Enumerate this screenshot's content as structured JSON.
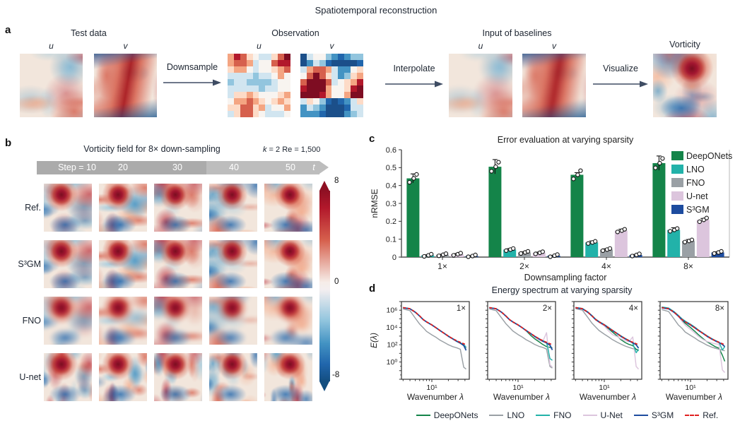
{
  "figure": {
    "title": "Spatiotemporal reconstruction"
  },
  "panel_a": {
    "label": "a",
    "groups": [
      {
        "title": "Test data",
        "maps": [
          {
            "label": "u"
          },
          {
            "label": "v"
          }
        ]
      },
      {
        "title": "Observation",
        "maps": [
          {
            "label": "u"
          },
          {
            "label": "v"
          }
        ]
      },
      {
        "title": "Input of baselines",
        "maps": [
          {
            "label": "u"
          },
          {
            "label": "v"
          }
        ]
      },
      {
        "title": "Vorticity"
      }
    ],
    "arrows": [
      {
        "label": "Downsample"
      },
      {
        "label": "Interpolate"
      },
      {
        "label": "Visualize"
      }
    ]
  },
  "panel_b": {
    "label": "b",
    "title": "Vorticity field for 8× down-sampling",
    "subtitle_k": "k",
    "subtitle_rest": " = 2 Re = 1,500",
    "timeline": {
      "labels": [
        "Step = 10",
        "20",
        "30",
        "40",
        "50"
      ],
      "axis": "t"
    },
    "rows": [
      "Ref.",
      "S³GM",
      "FNO",
      "U-net"
    ],
    "colorbar": {
      "max": "8",
      "mid": "0",
      "min": "-8"
    }
  },
  "panel_c": {
    "label": "c"
  },
  "panel_d": {
    "label": "d",
    "title": "Energy spectrum at varying sparsity",
    "legend": [
      {
        "label": "DeepONets",
        "color": "#148449",
        "dash": false
      },
      {
        "label": "LNO",
        "color": "#9aa0a5",
        "dash": false
      },
      {
        "label": "FNO",
        "color": "#22b2a9",
        "dash": false
      },
      {
        "label": "U-Net",
        "color": "#dcc5dd",
        "dash": false
      },
      {
        "label": "S³GM",
        "color": "#1d4c9f",
        "dash": false
      },
      {
        "label": "Ref.",
        "color": "#e01f1f",
        "dash": true
      }
    ]
  },
  "chart_data": [
    {
      "type": "bar",
      "title": "Error evaluation at varying sparsity",
      "xlabel": "Downsampling factor",
      "ylabel": "nRMSE",
      "ylim": [
        0,
        0.6
      ],
      "ytick_values": [
        0,
        0.1,
        0.2,
        0.3,
        0.4,
        0.5,
        0.6
      ],
      "ytick_labels": [
        "0",
        "0.1",
        "0.2",
        "0.3",
        "0.4",
        "0.5",
        "0.6"
      ],
      "categories": [
        "1×",
        "2×",
        "4×",
        "8×"
      ],
      "legend_position": "top-right",
      "grid": false,
      "series": [
        {
          "name": "DeepONets",
          "color": "#148449",
          "values": [
            0.44,
            0.505,
            0.46,
            0.525
          ],
          "errors": [
            0.025,
            0.04,
            0.012,
            0.04
          ]
        },
        {
          "name": "LNO",
          "color": "#22b2a9",
          "values": [
            0.01,
            0.042,
            0.082,
            0.152
          ],
          "errors": [
            0.003,
            0.006,
            0.008,
            0.012
          ]
        },
        {
          "name": "FNO",
          "color": "#9aa0a5",
          "values": [
            0.013,
            0.026,
            0.042,
            0.09
          ],
          "errors": [
            0.003,
            0.004,
            0.005,
            0.008
          ]
        },
        {
          "name": "U-net",
          "color": "#dcc5dd",
          "values": [
            0.016,
            0.024,
            0.148,
            0.208
          ],
          "errors": [
            0.004,
            0.004,
            0.008,
            0.008
          ]
        },
        {
          "name": "S³GM",
          "color": "#1d4c9f",
          "values": [
            0.006,
            0.008,
            0.012,
            0.026
          ],
          "errors": [
            0.002,
            0.002,
            0.003,
            0.004
          ]
        }
      ]
    },
    {
      "type": "line",
      "corner_label": "1×",
      "xlabel": "Wavenumber λ",
      "ylabel": "E(λ)",
      "xscale": "log",
      "yscale": "log",
      "xtick_labels": [
        "10¹"
      ],
      "ytick_labels": [
        "10⁰",
        "10²",
        "10⁴",
        "10⁶"
      ],
      "ytick_exponents": [
        0,
        2,
        4,
        6
      ],
      "x": [
        3,
        4,
        5,
        6,
        7,
        8,
        10,
        12,
        14,
        17,
        20,
        24,
        28,
        33,
        38,
        42
      ],
      "series": [
        {
          "name": "LNO",
          "color": "#9aa0a5",
          "values": [
            1400000,
            900000,
            120000,
            25000,
            9000,
            3500,
            1400,
            700,
            350,
            180,
            100,
            60,
            45,
            30,
            0.25,
            0.15
          ]
        },
        {
          "name": "DeepONets",
          "color": "#148449",
          "values": [
            2000000,
            1500000,
            600000,
            220000,
            80000,
            45000,
            20000,
            9000,
            4500,
            2000,
            1000,
            500,
            250,
            150,
            80,
            40
          ]
        },
        {
          "name": "U-Net",
          "color": "#dcc5dd",
          "values": [
            2000000,
            1500000,
            600000,
            220000,
            80000,
            45000,
            20000,
            9000,
            4500,
            2000,
            1000,
            500,
            270,
            160,
            95,
            50
          ]
        },
        {
          "name": "FNO",
          "color": "#22b2a9",
          "values": [
            2000000,
            1500000,
            600000,
            220000,
            80000,
            45000,
            20000,
            9000,
            4500,
            2000,
            1000,
            500,
            280,
            170,
            100,
            55
          ]
        },
        {
          "name": "S³GM",
          "color": "#1d4c9f",
          "values": [
            1900000,
            1450000,
            580000,
            210000,
            78000,
            44000,
            19500,
            8800,
            4400,
            1950,
            950,
            480,
            260,
            155,
            85,
            22
          ]
        },
        {
          "name": "Ref.",
          "color": "#e01f1f",
          "dash": true,
          "values": [
            2000000,
            1500000,
            600000,
            220000,
            80000,
            45000,
            20000,
            9000,
            4500,
            2000,
            1000,
            500,
            300,
            190,
            130,
            100
          ]
        }
      ]
    },
    {
      "type": "line",
      "corner_label": "2×",
      "xlabel": "Wavenumber λ",
      "ylabel": "E(λ)",
      "xscale": "log",
      "yscale": "log",
      "xtick_labels": [
        "10¹"
      ],
      "ytick_labels": [
        "10⁰",
        "10²",
        "10⁴",
        "10⁶"
      ],
      "ytick_exponents": [
        0,
        2,
        4,
        6
      ],
      "x": [
        3,
        4,
        5,
        6,
        7,
        8,
        10,
        12,
        14,
        17,
        20,
        24,
        28,
        33,
        38,
        42
      ],
      "series": [
        {
          "name": "LNO",
          "color": "#9aa0a5",
          "values": [
            1400000,
            900000,
            130000,
            28000,
            10000,
            4000,
            1500,
            750,
            380,
            200,
            110,
            65,
            50,
            32,
            0.3,
            0.2
          ]
        },
        {
          "name": "DeepONets",
          "color": "#148449",
          "values": [
            2000000,
            1500000,
            600000,
            220000,
            80000,
            45000,
            20000,
            9000,
            4200,
            1200,
            500,
            220,
            110,
            60,
            50,
            45
          ]
        },
        {
          "name": "U-Net",
          "color": "#dcc5dd",
          "values": [
            2000000,
            1500000,
            600000,
            220000,
            80000,
            45000,
            20000,
            9000,
            4500,
            1800,
            800,
            350,
            220,
            2500,
            0.5,
            0.25
          ]
        },
        {
          "name": "FNO",
          "color": "#22b2a9",
          "values": [
            2000000,
            1500000,
            600000,
            220000,
            80000,
            45000,
            20000,
            9000,
            4500,
            2000,
            1000,
            500,
            300,
            190,
            2.5,
            1.6
          ]
        },
        {
          "name": "S³GM",
          "color": "#1d4c9f",
          "values": [
            1900000,
            1450000,
            580000,
            210000,
            78000,
            44000,
            19500,
            8800,
            4400,
            1950,
            950,
            480,
            260,
            160,
            90,
            25
          ]
        },
        {
          "name": "Ref.",
          "color": "#e01f1f",
          "dash": true,
          "values": [
            2000000,
            1500000,
            600000,
            220000,
            80000,
            45000,
            20000,
            9000,
            4500,
            2000,
            1000,
            500,
            300,
            190,
            130,
            100
          ]
        }
      ]
    },
    {
      "type": "line",
      "corner_label": "4×",
      "xlabel": "Wavenumber λ",
      "ylabel": "E(λ)",
      "xscale": "log",
      "yscale": "log",
      "xtick_labels": [
        "10¹"
      ],
      "ytick_labels": [
        "10⁰",
        "10²",
        "10⁴",
        "10⁶"
      ],
      "ytick_exponents": [
        0,
        2,
        4,
        6
      ],
      "x": [
        3,
        4,
        5,
        6,
        7,
        8,
        10,
        12,
        14,
        17,
        20,
        24,
        28,
        33,
        38,
        42
      ],
      "series": [
        {
          "name": "LNO",
          "color": "#9aa0a5",
          "values": [
            1500000,
            1000000,
            150000,
            30000,
            11000,
            4500,
            1700,
            800,
            400,
            200,
            120,
            70,
            50,
            35,
            30,
            26
          ]
        },
        {
          "name": "DeepONets",
          "color": "#148449",
          "values": [
            2000000,
            1500000,
            600000,
            220000,
            80000,
            42000,
            18000,
            7000,
            3000,
            1100,
            400,
            180,
            110,
            80,
            30,
            20
          ]
        },
        {
          "name": "U-Net",
          "color": "#dcc5dd",
          "values": [
            2000000,
            1500000,
            600000,
            220000,
            80000,
            40000,
            15000,
            4000,
            1500,
            900,
            500,
            280,
            220,
            800,
            0.3,
            0.15
          ]
        },
        {
          "name": "FNO",
          "color": "#22b2a9",
          "values": [
            2100000,
            1600000,
            650000,
            240000,
            90000,
            50000,
            22000,
            10000,
            5000,
            2200,
            1100,
            550,
            320,
            150,
            12,
            30
          ]
        },
        {
          "name": "S³GM",
          "color": "#1d4c9f",
          "values": [
            1900000,
            1450000,
            580000,
            210000,
            78000,
            44000,
            19500,
            8800,
            4400,
            1950,
            950,
            480,
            280,
            170,
            100,
            40
          ]
        },
        {
          "name": "Ref.",
          "color": "#e01f1f",
          "dash": true,
          "values": [
            2000000,
            1500000,
            600000,
            220000,
            80000,
            45000,
            20000,
            9000,
            4500,
            2000,
            1000,
            500,
            300,
            190,
            130,
            100
          ]
        }
      ]
    },
    {
      "type": "line",
      "corner_label": "8×",
      "xlabel": "Wavenumber λ",
      "ylabel": "E(λ)",
      "xscale": "log",
      "yscale": "log",
      "xtick_labels": [
        "10¹"
      ],
      "ytick_labels": [
        "10⁰",
        "10²",
        "10⁴",
        "10⁶"
      ],
      "ytick_exponents": [
        0,
        2,
        4,
        6
      ],
      "x": [
        3,
        4,
        5,
        6,
        7,
        8,
        10,
        12,
        14,
        17,
        20,
        24,
        28,
        33,
        38,
        42
      ],
      "series": [
        {
          "name": "LNO",
          "color": "#9aa0a5",
          "values": [
            1200000,
            700000,
            100000,
            20000,
            8000,
            3000,
            1200,
            600,
            300,
            160,
            90,
            55,
            40,
            30,
            24,
            20
          ]
        },
        {
          "name": "DeepONets",
          "color": "#148449",
          "values": [
            2000000,
            1500000,
            600000,
            220000,
            70000,
            30000,
            10000,
            3500,
            1400,
            500,
            220,
            110,
            60,
            40,
            6,
            1.2
          ]
        },
        {
          "name": "U-Net",
          "color": "#dcc5dd",
          "values": [
            2000000,
            1500000,
            600000,
            200000,
            50000,
            18000,
            6000,
            2200,
            900,
            400,
            240,
            170,
            130,
            110,
            0.12,
            0.06
          ]
        },
        {
          "name": "FNO",
          "color": "#22b2a9",
          "values": [
            2400000,
            1800000,
            700000,
            260000,
            100000,
            55000,
            24000,
            11000,
            5000,
            2200,
            1100,
            550,
            320,
            200,
            25,
            60
          ]
        },
        {
          "name": "S³GM",
          "color": "#1d4c9f",
          "values": [
            1900000,
            1450000,
            580000,
            210000,
            78000,
            44000,
            19500,
            8800,
            4400,
            1950,
            950,
            480,
            290,
            180,
            110,
            60
          ]
        },
        {
          "name": "Ref.",
          "color": "#e01f1f",
          "dash": true,
          "values": [
            2000000,
            1500000,
            600000,
            220000,
            80000,
            45000,
            20000,
            9000,
            4500,
            2000,
            1000,
            500,
            300,
            190,
            130,
            100
          ]
        }
      ]
    }
  ]
}
